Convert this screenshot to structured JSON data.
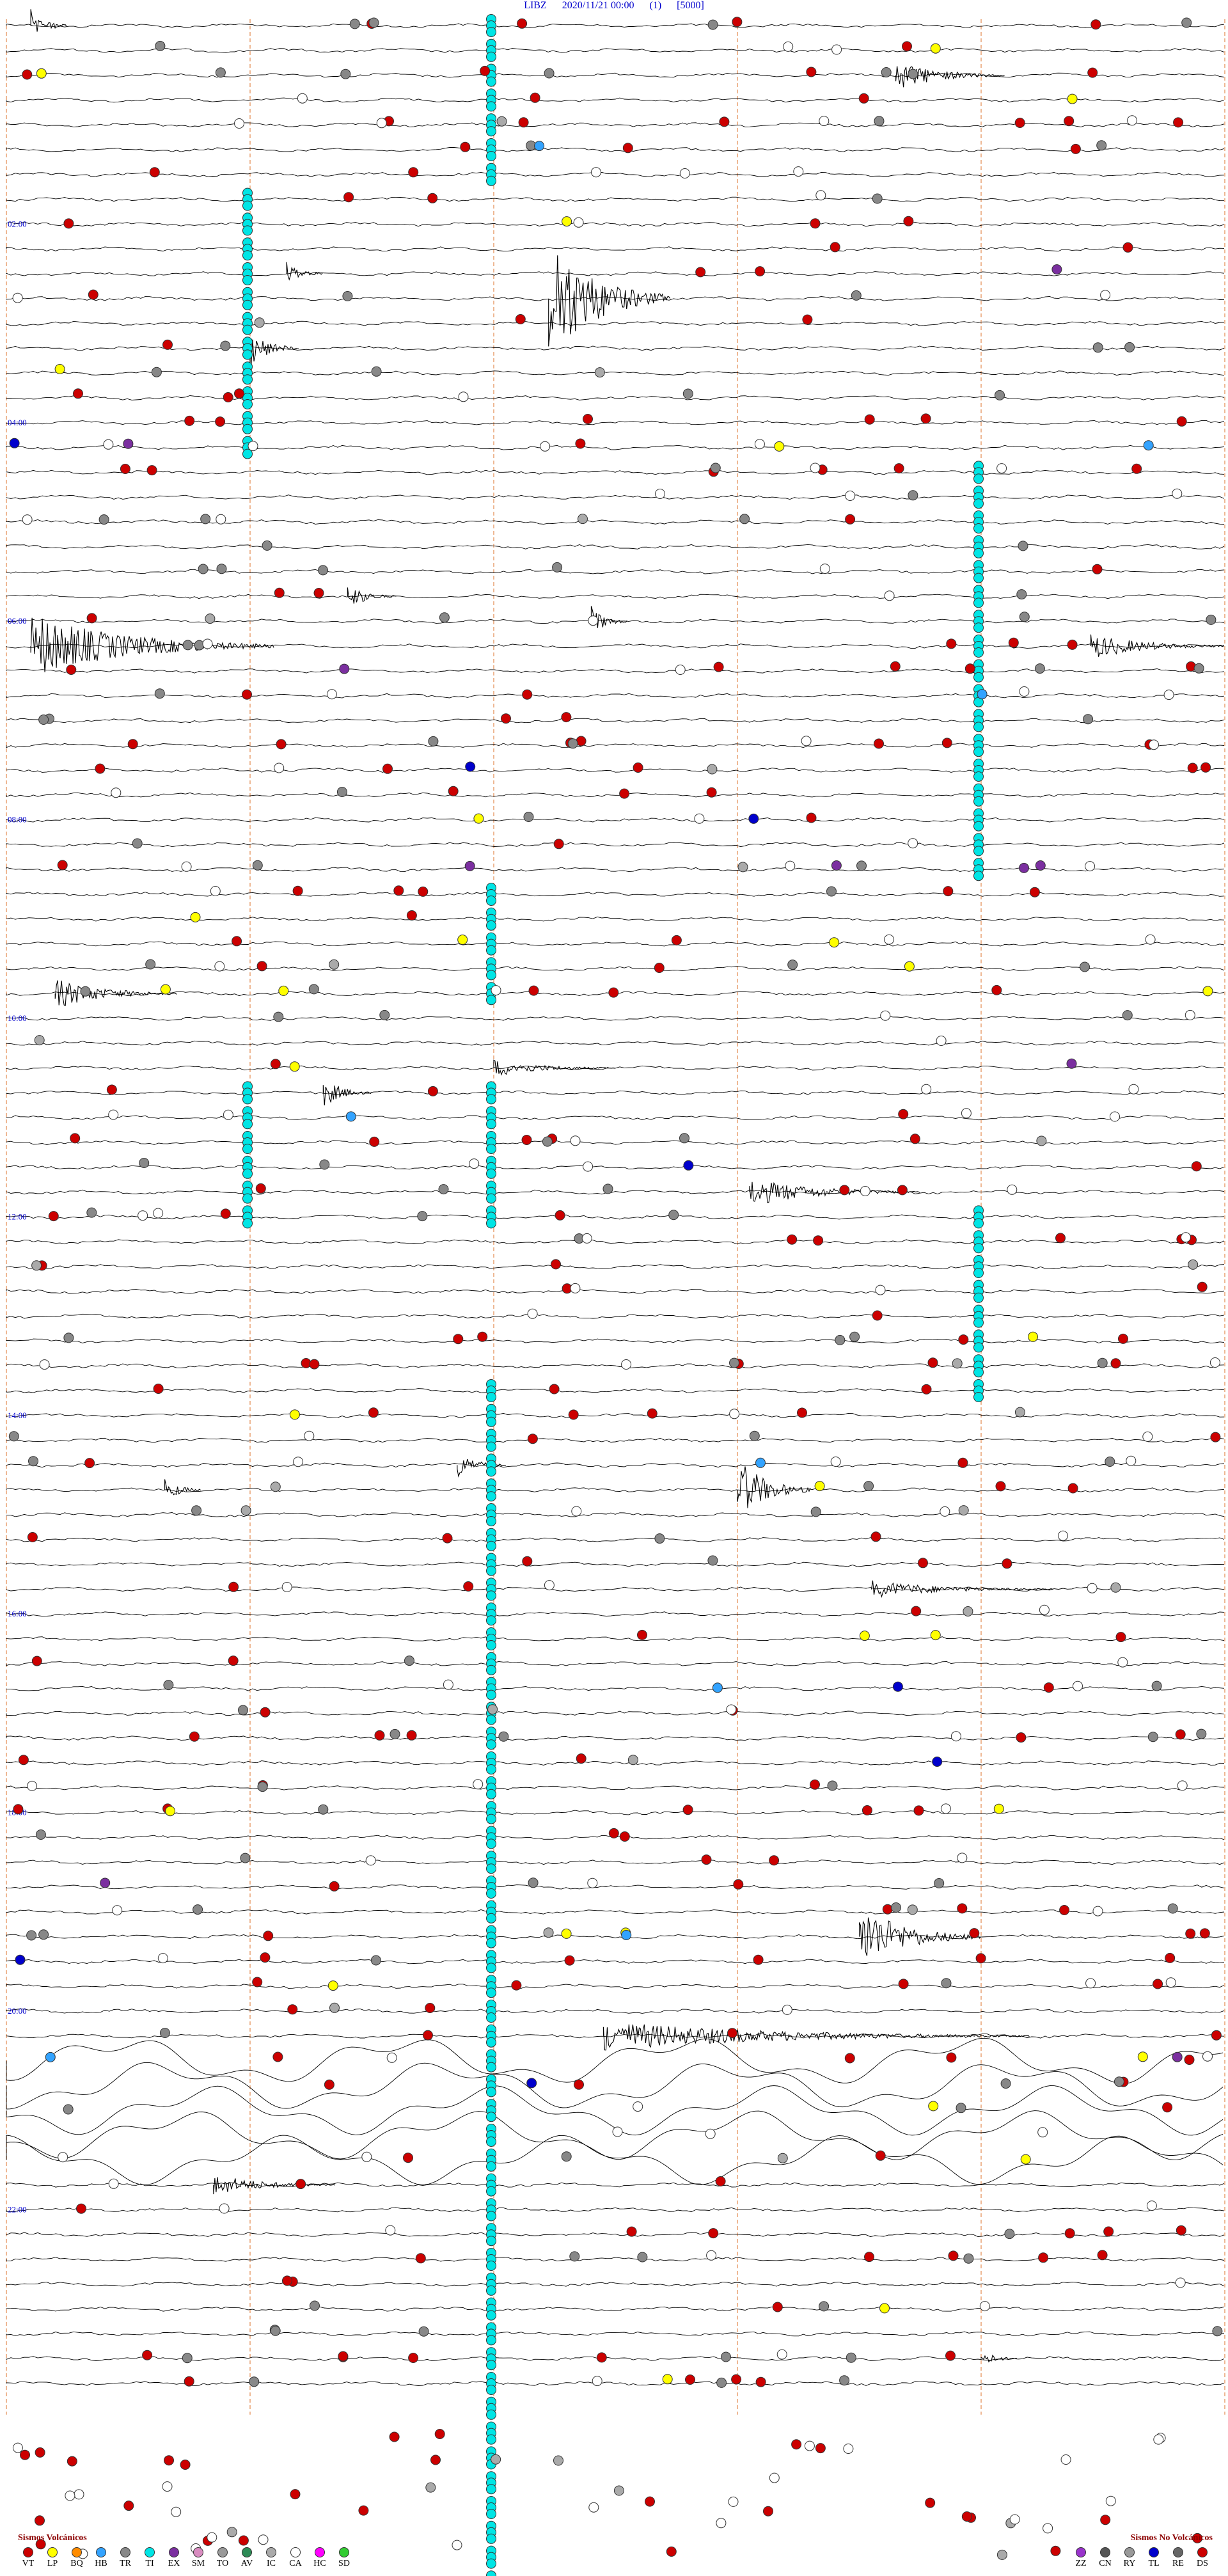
{
  "header": {
    "station": "LIBZ",
    "datetime": "2020/11/21 00:00",
    "channel": "(1)",
    "scale": "[5000]"
  },
  "chart_data": {
    "type": "scatter",
    "subtype": "helicorder",
    "title": "LIBZ 2020/11/21 00:00 (1) [5000]",
    "rows_per_hour": 4,
    "total_rows": 96,
    "hour_labels": [
      "02:00",
      "04:00",
      "06:00",
      "08:00",
      "10:00",
      "12:00",
      "14:00",
      "16:00",
      "18:00",
      "20:00",
      "22:00"
    ],
    "hour_label_rows": [
      8,
      16,
      24,
      32,
      40,
      48,
      56,
      64,
      72,
      80,
      88
    ],
    "time_ticks_minutes": [
      0,
      3,
      6,
      9,
      12,
      15
    ],
    "grid": true,
    "event_counts": {
      "VT": 240,
      "LP": 30,
      "TR": 130,
      "CA": 120,
      "IC": 25,
      "HB": 8,
      "EX": 10,
      "TL": 8
    },
    "seismic_bursts": [
      {
        "row": 0,
        "x_frac": 0.02,
        "len_frac": 0.03,
        "amp": 1.5
      },
      {
        "row": 2,
        "x_frac": 0.73,
        "len_frac": 0.09,
        "amp": 1.4
      },
      {
        "row": 10,
        "x_frac": 0.23,
        "len_frac": 0.03,
        "amp": 1.2
      },
      {
        "row": 11,
        "x_frac": 0.445,
        "len_frac": 0.1,
        "amp": 6.0
      },
      {
        "row": 13,
        "x_frac": 0.2,
        "len_frac": 0.04,
        "amp": 1.8
      },
      {
        "row": 23,
        "x_frac": 0.28,
        "len_frac": 0.04,
        "amp": 1.2
      },
      {
        "row": 25,
        "x_frac": 0.02,
        "len_frac": 0.2,
        "amp": 3.0
      },
      {
        "row": 24,
        "x_frac": 0.48,
        "len_frac": 0.03,
        "amp": 1.4
      },
      {
        "row": 25,
        "x_frac": 0.89,
        "len_frac": 0.11,
        "amp": 1.2
      },
      {
        "row": 39,
        "x_frac": 0.04,
        "len_frac": 0.1,
        "amp": 1.4
      },
      {
        "row": 43,
        "x_frac": 0.26,
        "len_frac": 0.04,
        "amp": 1.4
      },
      {
        "row": 42,
        "x_frac": 0.4,
        "len_frac": 0.1,
        "amp": 0.8
      },
      {
        "row": 47,
        "x_frac": 0.61,
        "len_frac": 0.14,
        "amp": 1.3
      },
      {
        "row": 58,
        "x_frac": 0.37,
        "len_frac": 0.04,
        "amp": 1.2
      },
      {
        "row": 59,
        "x_frac": 0.6,
        "len_frac": 0.06,
        "amp": 3.0
      },
      {
        "row": 59,
        "x_frac": 0.13,
        "len_frac": 0.03,
        "amp": 1.2
      },
      {
        "row": 63,
        "x_frac": 0.71,
        "len_frac": 0.15,
        "amp": 0.8
      },
      {
        "row": 77,
        "x_frac": 0.7,
        "len_frac": 0.1,
        "amp": 3.0
      },
      {
        "row": 81,
        "x_frac": 0.49,
        "len_frac": 0.35,
        "amp": 1.4
      },
      {
        "row": 87,
        "x_frac": 0.17,
        "len_frac": 0.1,
        "amp": 1.0
      },
      {
        "row": 94,
        "x_frac": 0.8,
        "len_frac": 0.03,
        "amp": 0.8
      }
    ],
    "noise_block": {
      "row_start": 82,
      "row_end": 86,
      "amp": 2.0
    },
    "cyan_tracks": [
      {
        "x_frac": 0.4,
        "row_start": 0,
        "row_end": 6
      },
      {
        "x_frac": 0.2,
        "row_start": 7,
        "row_end": 17
      },
      {
        "x_frac": 0.8,
        "row_start": 18,
        "row_end": 34
      },
      {
        "x_frac": 0.4,
        "row_start": 35,
        "row_end": 39
      },
      {
        "x_frac": 0.2,
        "row_start": 43,
        "row_end": 48
      },
      {
        "x_frac": 0.4,
        "row_start": 43,
        "row_end": 48
      },
      {
        "x_frac": 0.8,
        "row_start": 48,
        "row_end": 55
      },
      {
        "x_frac": 0.4,
        "row_start": 55,
        "row_end": 104
      }
    ]
  },
  "legend": {
    "volcanic_title": "Sismos Volcánicos",
    "volcanic_items": [
      {
        "code": "VT",
        "color": "#cc0000"
      },
      {
        "code": "LP",
        "color": "#ffff00"
      },
      {
        "code": "BQ",
        "color": "#ff8c00"
      },
      {
        "code": "HB",
        "color": "#33a3ff"
      },
      {
        "code": "TR",
        "color": "#888888"
      },
      {
        "code": "TI",
        "color": "#00e5e5"
      },
      {
        "code": "EX",
        "color": "#7b2fa0"
      },
      {
        "code": "SM",
        "color": "#d98cc0"
      },
      {
        "code": "TO",
        "color": "#999999"
      },
      {
        "code": "AV",
        "color": "#2e8b57"
      },
      {
        "code": "IC",
        "color": "#aaaaaa"
      },
      {
        "code": "CA",
        "color": "#ffffff"
      },
      {
        "code": "HC",
        "color": "#ff00ff"
      },
      {
        "code": "SD",
        "color": "#33cc33"
      }
    ],
    "nonvolcanic_title": "Sismos No Volcánicos",
    "nonvolcanic_items": [
      {
        "code": "ZZ",
        "color": "#9933cc"
      },
      {
        "code": "CN",
        "color": "#555555"
      },
      {
        "code": "RY",
        "color": "#999999"
      },
      {
        "code": "TL",
        "color": "#0000cc"
      },
      {
        "code": "RE",
        "color": "#666666"
      },
      {
        "code": "DS",
        "color": "#cc0000"
      }
    ]
  }
}
